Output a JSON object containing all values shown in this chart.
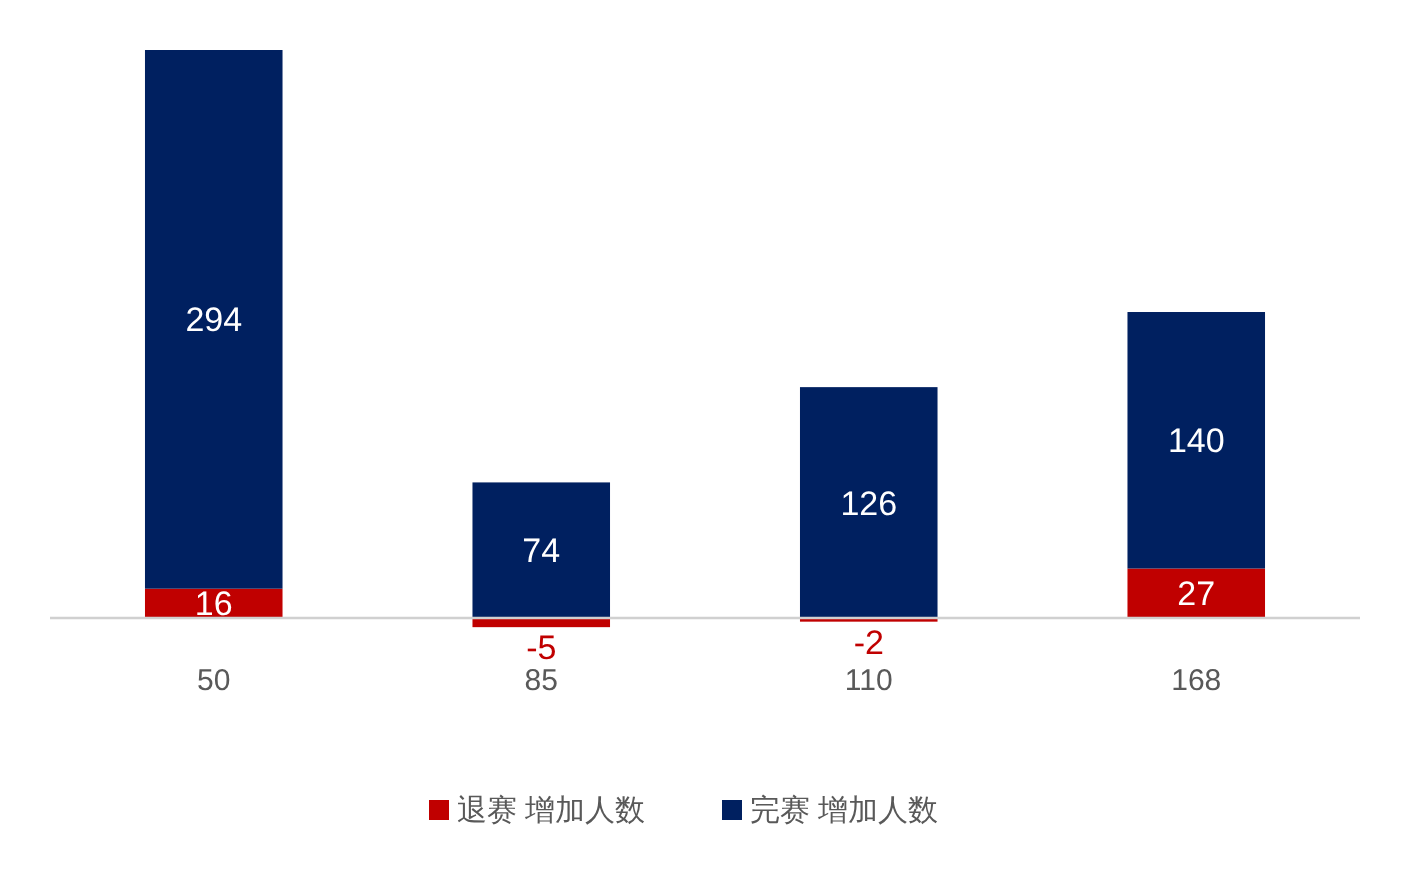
{
  "chart_data": {
    "type": "bar",
    "stacked": true,
    "legend": "bottom",
    "data_labels": true,
    "categories": [
      "50",
      "85",
      "110",
      "168"
    ],
    "series": [
      {
        "name": "退赛 增加人数",
        "color": "#c00000",
        "values": [
          16,
          -5,
          -2,
          27
        ]
      },
      {
        "name": "完赛 增加人数",
        "color": "#002060",
        "values": [
          294,
          74,
          126,
          140
        ]
      }
    ]
  }
}
